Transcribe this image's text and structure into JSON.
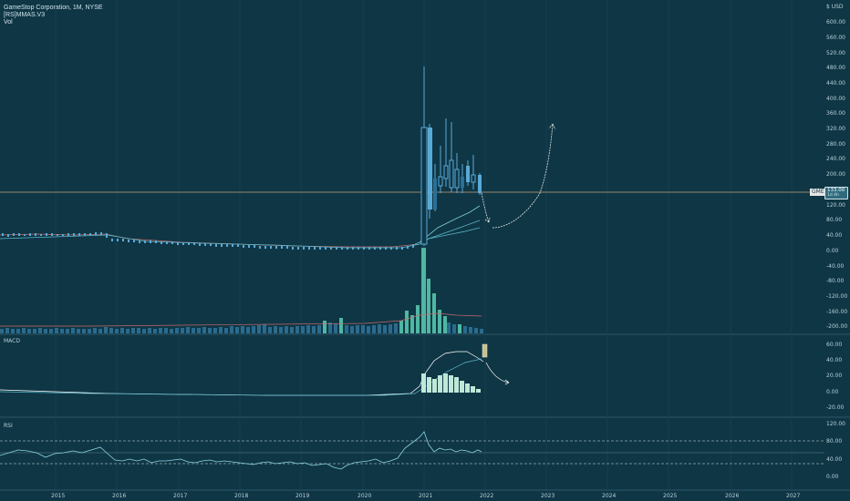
{
  "chart": {
    "symbol_line": "GameStop Corporation, 1M, NYSE",
    "indicator_line": "[RS]MMAS.V3",
    "volume_label": "Vol",
    "currency_label": "$ USD",
    "symbol_tag": "GME",
    "price_tag": "133.00",
    "price_tag_sub": "1d 4h"
  },
  "panes": {
    "macd": {
      "label": "MACD"
    },
    "rsi": {
      "label": "RSI"
    }
  },
  "axes": {
    "price_ticks": [
      "600.00",
      "560.00",
      "520.00",
      "480.00",
      "440.00",
      "400.00",
      "360.00",
      "320.00",
      "280.00",
      "240.00",
      "200.00",
      "160.00",
      "120.00",
      "80.00",
      "40.00",
      "0.00",
      "-40.00",
      "-80.00",
      "-120.00",
      "-160.00",
      "-200.00"
    ],
    "macd_ticks": [
      "60.00",
      "40.00",
      "20.00",
      "0.00",
      "-20.00"
    ],
    "rsi_ticks": [
      "120.00",
      "80.00",
      "40.00",
      "0.00"
    ],
    "years": [
      "2015",
      "2016",
      "2017",
      "2018",
      "2019",
      "2020",
      "2021",
      "2022",
      "2023",
      "2024",
      "2025",
      "2026",
      "2027"
    ]
  },
  "colors": {
    "background": "#0f3645",
    "up_candle": "#5aa9d6",
    "down_candle": "#2b6f96",
    "volume_up": "#4fb7a2",
    "volume_down": "#2a6b8e",
    "macd_hist": "#bfe8d8",
    "price_line": "#c8a07a"
  }
}
